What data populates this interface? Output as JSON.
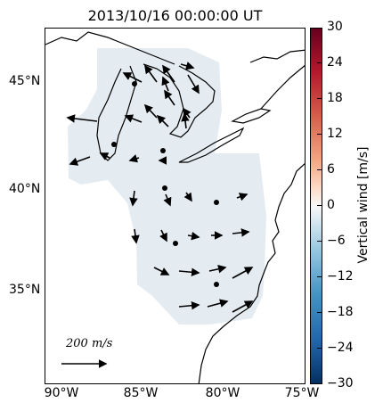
{
  "title": "2013/10/16 00:00:00 UT",
  "map": {
    "lat_labels": [
      "45°N",
      "40°N",
      "35°N"
    ],
    "lon_labels": [
      "90°W",
      "85°W",
      "80°W",
      "75°W"
    ],
    "scale_label": "200 m/s"
  },
  "colorbar": {
    "label": "Vertical wind [m/s]",
    "ticks": [
      "30",
      "24",
      "18",
      "12",
      "6",
      "0",
      "−6",
      "−12",
      "−18",
      "−24",
      "−30"
    ]
  }
}
